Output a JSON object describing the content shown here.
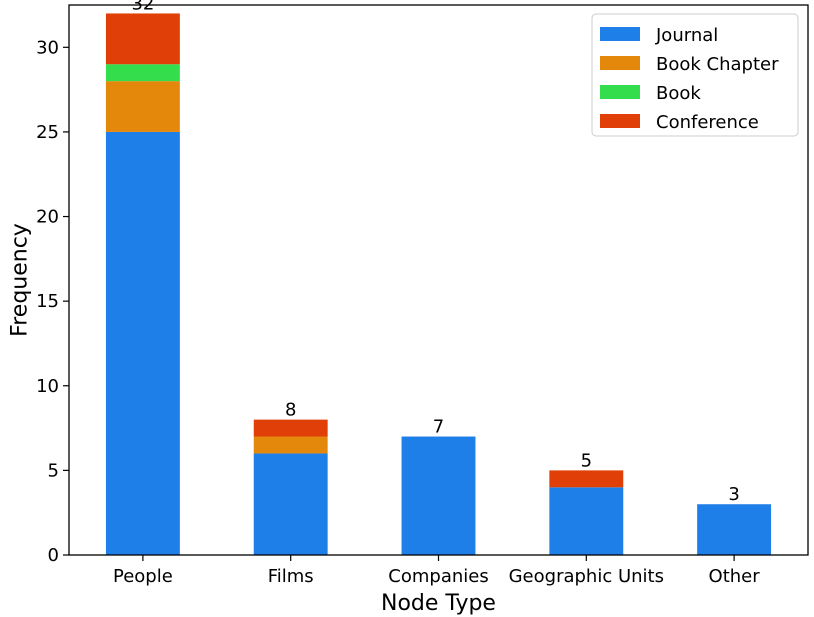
{
  "chart_data": {
    "type": "bar",
    "stacked": true,
    "categories": [
      "People",
      "Films",
      "Companies",
      "Geographic Units",
      "Other"
    ],
    "series": [
      {
        "name": "Journal",
        "values": [
          25,
          6,
          7,
          4,
          3
        ],
        "color": "#1f7fe8"
      },
      {
        "name": "Book Chapter",
        "values": [
          3,
          1,
          0,
          0,
          0
        ],
        "color": "#e3880a"
      },
      {
        "name": "Book",
        "values": [
          1,
          0,
          0,
          0,
          0
        ],
        "color": "#33dd4c"
      },
      {
        "name": "Conference",
        "values": [
          3,
          1,
          0,
          1,
          0
        ],
        "color": "#e04007"
      }
    ],
    "totals": [
      32,
      8,
      7,
      5,
      3
    ],
    "xlabel": "Node Type",
    "ylabel": "Frequency",
    "ylim": [
      0,
      32.5
    ],
    "yticks": [
      0,
      5,
      10,
      15,
      20,
      25,
      30
    ],
    "grid": false,
    "legend": "top-right"
  }
}
